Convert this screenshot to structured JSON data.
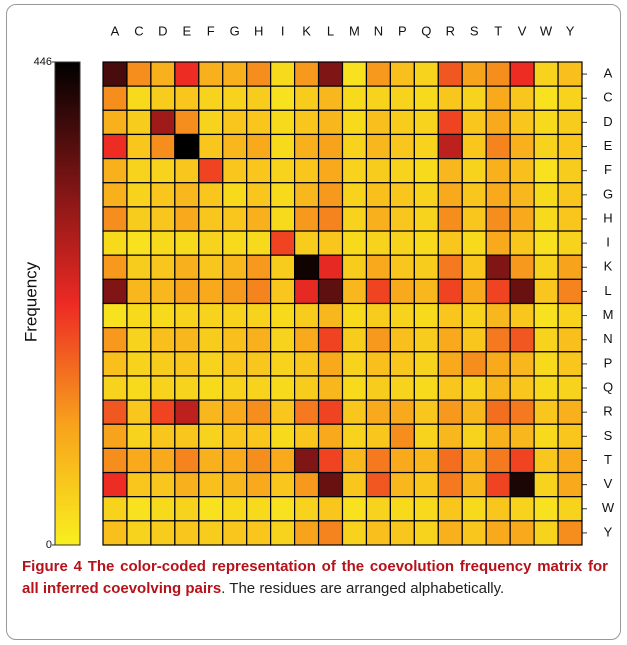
{
  "chart_data": {
    "type": "heatmap",
    "x_categories": [
      "A",
      "C",
      "D",
      "E",
      "F",
      "G",
      "H",
      "I",
      "K",
      "L",
      "M",
      "N",
      "P",
      "Q",
      "R",
      "S",
      "T",
      "V",
      "W",
      "Y"
    ],
    "y_categories": [
      "A",
      "C",
      "D",
      "E",
      "F",
      "G",
      "H",
      "I",
      "K",
      "L",
      "M",
      "N",
      "P",
      "Q",
      "R",
      "S",
      "T",
      "V",
      "W",
      "Y"
    ],
    "values": [
      [
        380,
        130,
        90,
        220,
        90,
        90,
        130,
        30,
        120,
        330,
        20,
        120,
        70,
        40,
        180,
        110,
        130,
        220,
        40,
        70
      ],
      [
        130,
        30,
        50,
        60,
        40,
        40,
        50,
        20,
        50,
        80,
        30,
        40,
        40,
        30,
        60,
        40,
        100,
        60,
        20,
        40
      ],
      [
        90,
        50,
        300,
        130,
        40,
        60,
        60,
        30,
        60,
        80,
        30,
        70,
        50,
        40,
        200,
        60,
        100,
        60,
        30,
        50
      ],
      [
        220,
        60,
        130,
        446,
        60,
        80,
        100,
        30,
        90,
        110,
        40,
        80,
        60,
        40,
        270,
        60,
        140,
        90,
        40,
        60
      ],
      [
        90,
        40,
        40,
        60,
        200,
        60,
        60,
        40,
        60,
        100,
        40,
        50,
        40,
        30,
        80,
        40,
        90,
        70,
        20,
        50
      ],
      [
        90,
        40,
        60,
        80,
        60,
        30,
        60,
        30,
        80,
        120,
        40,
        70,
        60,
        40,
        100,
        60,
        100,
        80,
        30,
        60
      ],
      [
        130,
        50,
        60,
        100,
        60,
        60,
        90,
        30,
        120,
        140,
        40,
        90,
        60,
        40,
        130,
        60,
        130,
        100,
        30,
        60
      ],
      [
        30,
        20,
        30,
        30,
        40,
        30,
        30,
        200,
        50,
        60,
        30,
        40,
        40,
        30,
        60,
        30,
        100,
        60,
        20,
        40
      ],
      [
        120,
        50,
        60,
        90,
        60,
        80,
        120,
        50,
        430,
        230,
        50,
        100,
        60,
        50,
        150,
        60,
        330,
        120,
        40,
        110
      ],
      [
        330,
        80,
        80,
        110,
        100,
        120,
        140,
        60,
        230,
        360,
        80,
        200,
        100,
        80,
        200,
        100,
        200,
        350,
        60,
        140
      ],
      [
        20,
        30,
        30,
        40,
        40,
        40,
        40,
        30,
        50,
        80,
        30,
        50,
        40,
        30,
        60,
        40,
        80,
        60,
        20,
        40
      ],
      [
        120,
        40,
        70,
        80,
        50,
        70,
        90,
        40,
        100,
        200,
        50,
        120,
        70,
        50,
        100,
        60,
        150,
        180,
        40,
        70
      ],
      [
        70,
        40,
        50,
        60,
        40,
        60,
        60,
        40,
        60,
        100,
        40,
        70,
        60,
        40,
        100,
        130,
        100,
        80,
        30,
        60
      ],
      [
        40,
        30,
        40,
        40,
        30,
        40,
        40,
        30,
        50,
        80,
        30,
        50,
        40,
        30,
        60,
        40,
        80,
        60,
        30,
        40
      ],
      [
        180,
        60,
        200,
        270,
        80,
        100,
        130,
        60,
        150,
        200,
        60,
        100,
        100,
        60,
        120,
        80,
        160,
        150,
        60,
        90
      ],
      [
        110,
        40,
        60,
        60,
        40,
        60,
        60,
        30,
        60,
        100,
        40,
        60,
        130,
        40,
        80,
        40,
        90,
        80,
        30,
        60
      ],
      [
        130,
        100,
        100,
        140,
        90,
        100,
        130,
        100,
        330,
        200,
        80,
        150,
        100,
        80,
        160,
        90,
        150,
        200,
        60,
        100
      ],
      [
        220,
        60,
        60,
        90,
        70,
        80,
        100,
        60,
        120,
        350,
        60,
        180,
        80,
        60,
        150,
        80,
        200,
        420,
        40,
        100
      ],
      [
        40,
        20,
        30,
        40,
        20,
        30,
        30,
        20,
        40,
        60,
        20,
        40,
        30,
        30,
        60,
        30,
        60,
        40,
        20,
        40
      ],
      [
        70,
        40,
        50,
        60,
        50,
        60,
        60,
        40,
        110,
        140,
        40,
        70,
        60,
        40,
        90,
        60,
        100,
        100,
        40,
        130
      ]
    ],
    "zlim": [
      0,
      446
    ],
    "zticks": [
      0,
      446
    ],
    "colorbar_label": "Frequency",
    "colormap": [
      "#f8ef1e",
      "#f8a21c",
      "#ed2a24",
      "#7a1414",
      "#000000"
    ]
  },
  "caption": {
    "bold": "Figure 4 The color-coded representation of the coevolution frequency matrix for all inferred coevolving pairs",
    "text": ". The residues are arranged alphabetically."
  }
}
